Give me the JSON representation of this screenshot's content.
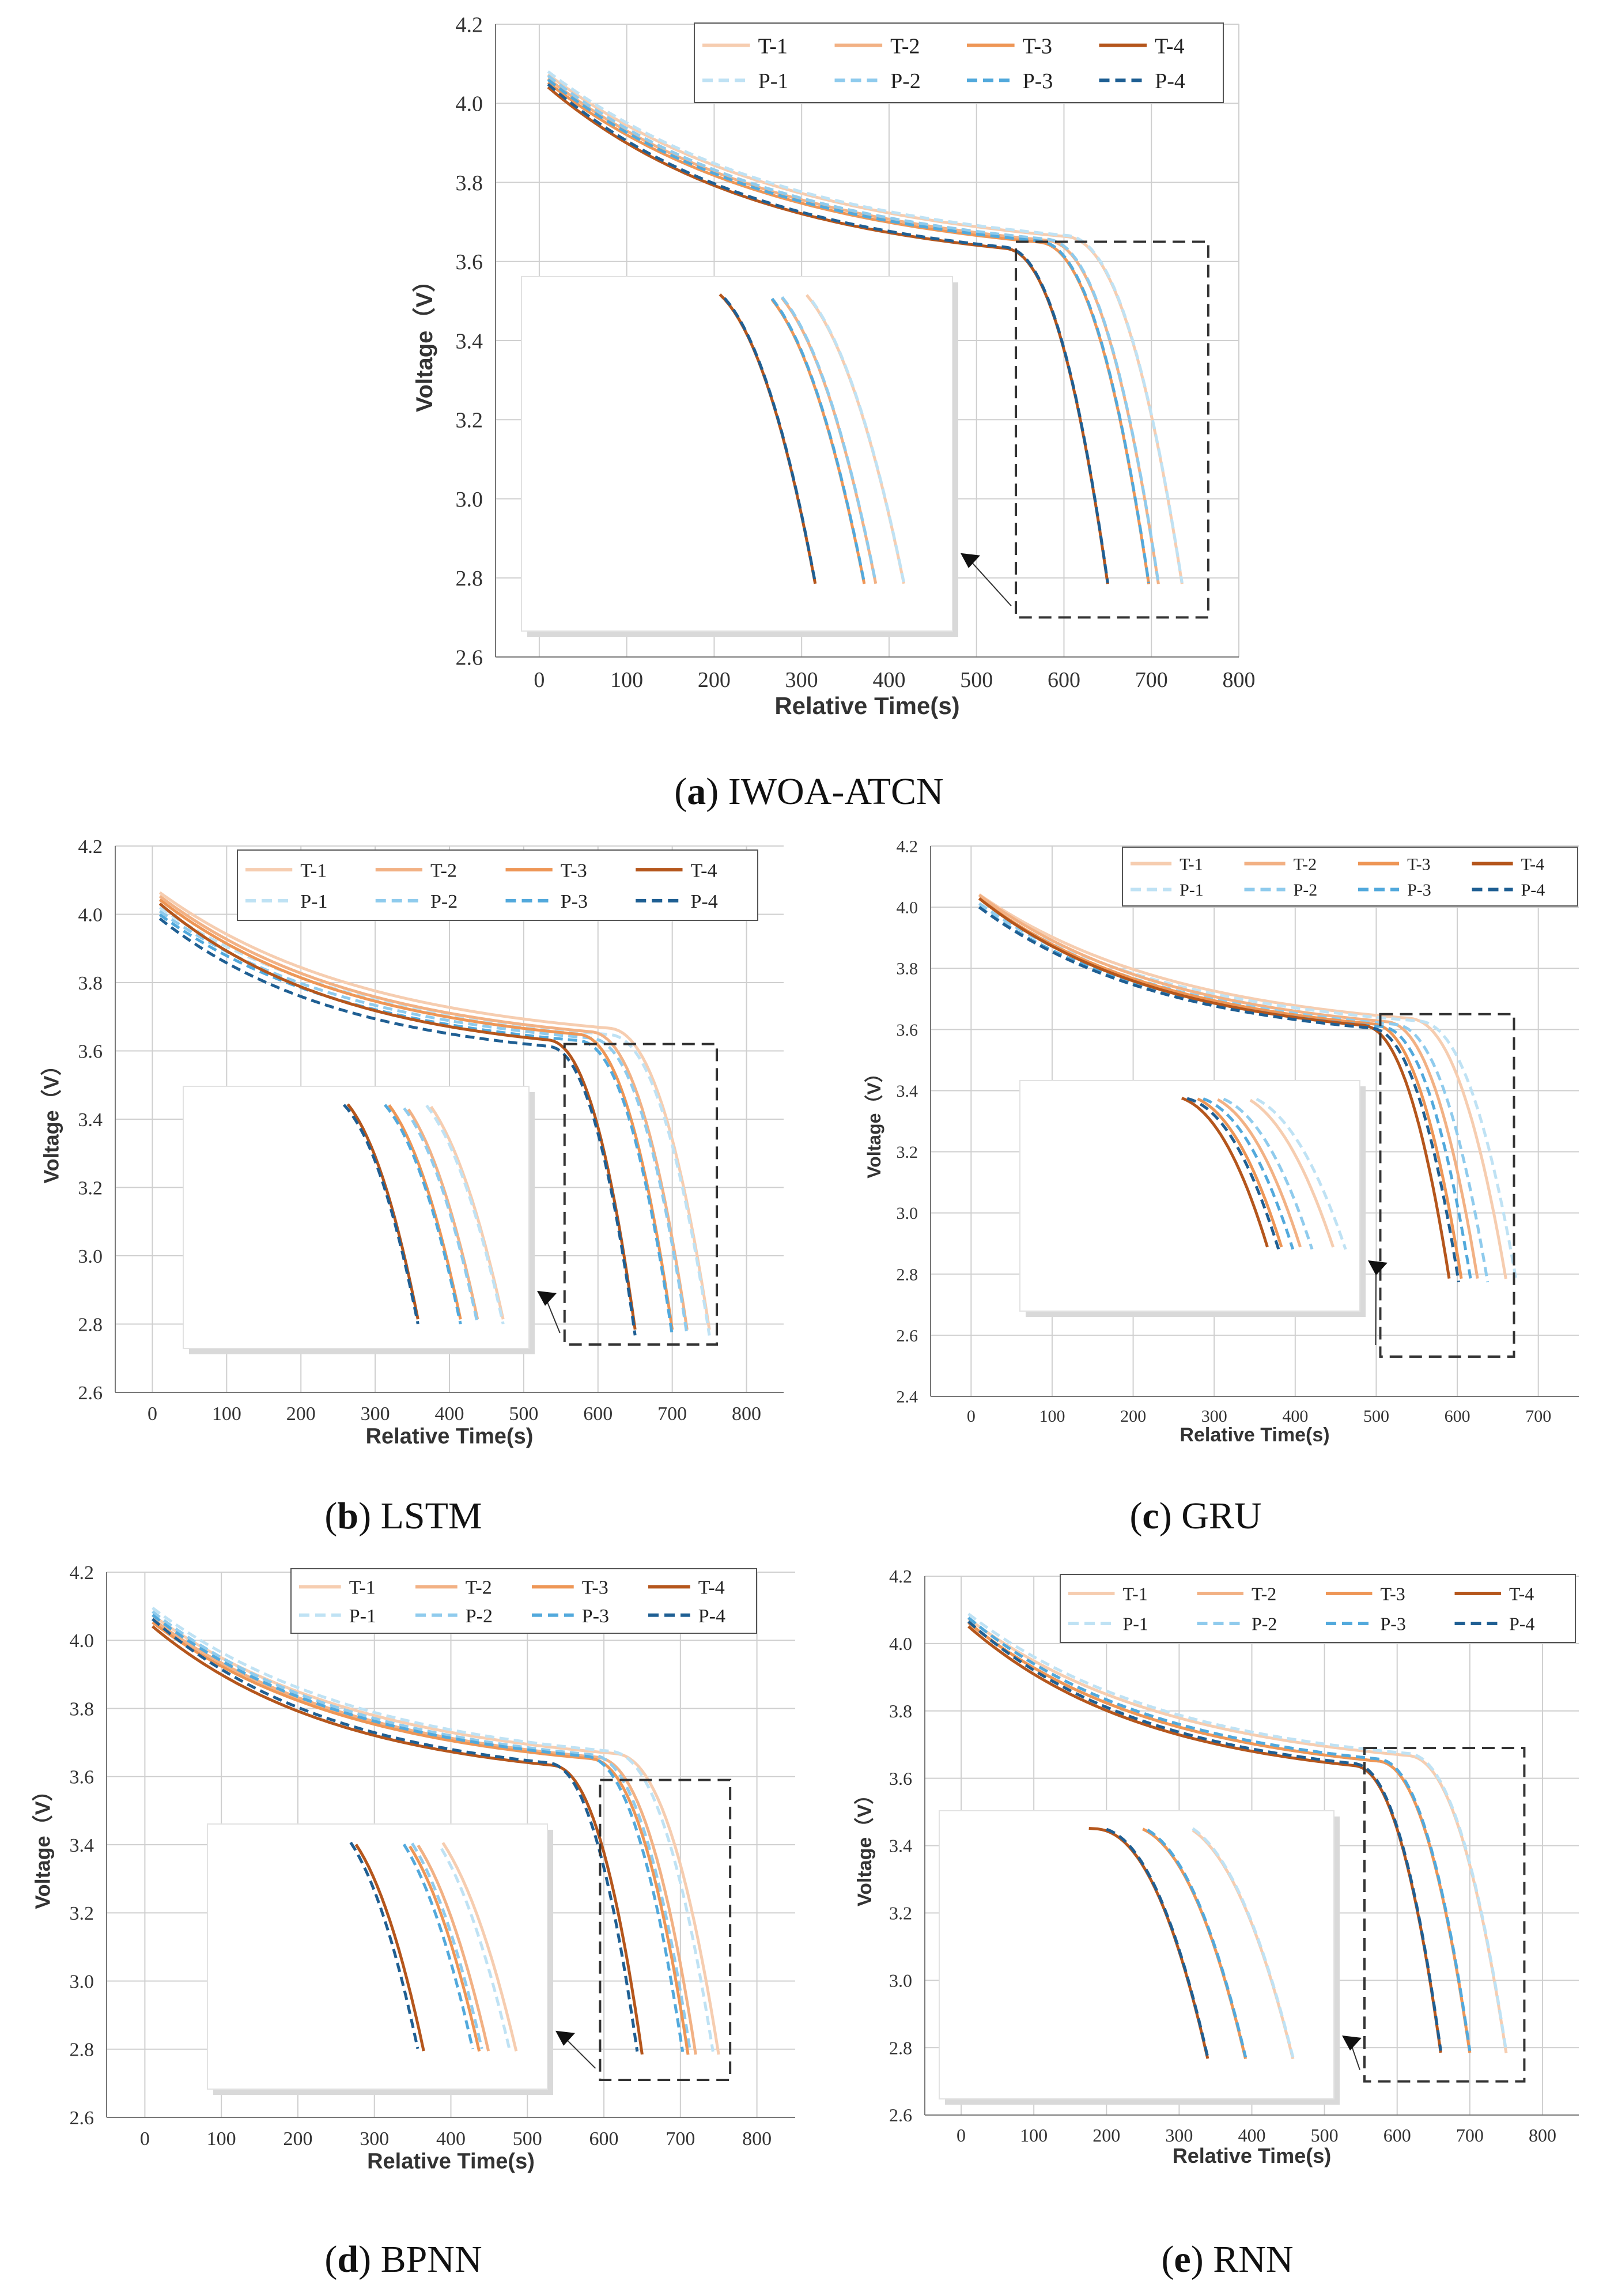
{
  "figure": {
    "legend_labels": [
      "T-1",
      "T-2",
      "T-3",
      "T-4",
      "P-1",
      "P-2",
      "P-3",
      "P-4"
    ],
    "colors": {
      "T-1": "#f6cdb0",
      "T-2": "#f2b184",
      "T-3": "#ee9656",
      "T-4": "#b5561c",
      "P-1": "#bfe2f4",
      "P-2": "#8fcbed",
      "P-3": "#52a9dc",
      "P-4": "#1f5f93"
    }
  },
  "chart_data": [
    {
      "id": "a",
      "type": "line",
      "caption_letter": "a",
      "caption_text": " IWOA-ATCN",
      "xlabel": "Relative Time(s)",
      "ylabel": "Voltage（V）",
      "xlim": [
        -50,
        800
      ],
      "ylim": [
        2.6,
        4.2
      ],
      "xticks": [
        "0",
        "100",
        "200",
        "300",
        "400",
        "500",
        "600",
        "700",
        "800"
      ],
      "yticks": [
        "2.6",
        "2.8",
        "3.0",
        "3.2",
        "3.4",
        "3.6",
        "3.8",
        "4.0",
        "4.2"
      ],
      "end_times": {
        "1": 735,
        "2": 708,
        "3": 697,
        "4": 650
      },
      "start_voltages": {
        "1": 4.09,
        "2": 4.08,
        "3": 4.07,
        "4": 4.06
      },
      "pred_offset_v": 0.005,
      "pred_time_scale": 1.0,
      "cutoff": 2.75,
      "zoom_box_x": [
        545,
        765
      ],
      "zoom_box_y": [
        2.7,
        3.65
      ]
    },
    {
      "id": "b",
      "type": "line",
      "caption_letter": "b",
      "caption_text": " LSTM",
      "xlabel": "Relative Time(s)",
      "ylabel": "Voltage（V）",
      "xlim": [
        -50,
        850
      ],
      "ylim": [
        2.6,
        4.2
      ],
      "xticks": [
        "0",
        "100",
        "200",
        "300",
        "400",
        "500",
        "600",
        "700",
        "800"
      ],
      "yticks": [
        "2.6",
        "2.8",
        "3.0",
        "3.2",
        "3.4",
        "3.6",
        "3.8",
        "4.0",
        "4.2"
      ],
      "end_times": {
        "1": 750,
        "2": 720,
        "3": 700,
        "4": 650
      },
      "start_voltages": {
        "1": 4.08,
        "2": 4.07,
        "3": 4.06,
        "4": 4.05
      },
      "pred_offset_v": -0.03,
      "pred_time_scale": 1.0,
      "cutoff": 2.75,
      "zoom_box_x": [
        555,
        760
      ],
      "zoom_box_y": [
        2.74,
        3.62
      ]
    },
    {
      "id": "c",
      "type": "line",
      "caption_letter": "c",
      "caption_text": " GRU",
      "xlabel": "Relative Time(s)",
      "ylabel": "Voltage（V）",
      "xlim": [
        -50,
        750
      ],
      "ylim": [
        2.4,
        4.2
      ],
      "xticks": [
        "0",
        "100",
        "200",
        "300",
        "400",
        "500",
        "600",
        "700"
      ],
      "yticks": [
        "2.4",
        "2.6",
        "2.8",
        "3.0",
        "3.2",
        "3.4",
        "3.6",
        "3.8",
        "4.0",
        "4.2"
      ],
      "end_times": {
        "1": 660,
        "2": 625,
        "3": 605,
        "4": 590
      },
      "start_voltages": {
        "1": 4.06,
        "2": 4.06,
        "3": 4.05,
        "4": 4.05
      },
      "pred_offset_v": -0.02,
      "pred_time_scale": 1.02,
      "cutoff": 2.75,
      "zoom_box_x": [
        505,
        670
      ],
      "zoom_box_y": [
        2.53,
        3.65
      ]
    },
    {
      "id": "d",
      "type": "line",
      "caption_letter": "d",
      "caption_text": " BPNN",
      "xlabel": "Relative Time(s)",
      "ylabel": "Voltage（V）",
      "xlim": [
        -50,
        850
      ],
      "ylim": [
        2.6,
        4.2
      ],
      "xticks": [
        "0",
        "100",
        "200",
        "300",
        "400",
        "500",
        "600",
        "700",
        "800"
      ],
      "yticks": [
        "2.6",
        "2.8",
        "3.0",
        "3.2",
        "3.4",
        "3.6",
        "3.8",
        "4.0",
        "4.2"
      ],
      "end_times": {
        "1": 750,
        "2": 720,
        "3": 710,
        "4": 650
      },
      "start_voltages": {
        "1": 4.09,
        "2": 4.08,
        "3": 4.07,
        "4": 4.06
      },
      "pred_offset_v": 0.015,
      "pred_time_scale": 0.99,
      "cutoff": 2.75,
      "zoom_box_x": [
        595,
        765
      ],
      "zoom_box_y": [
        2.71,
        3.59
      ]
    },
    {
      "id": "e",
      "type": "line",
      "caption_letter": "e",
      "caption_text": " RNN",
      "xlabel": "Relative Time(s)",
      "ylabel": "Voltage（V）",
      "xlim": [
        -50,
        850
      ],
      "ylim": [
        2.6,
        4.2
      ],
      "xticks": [
        "0",
        "100",
        "200",
        "300",
        "400",
        "500",
        "600",
        "700",
        "800"
      ],
      "yticks": [
        "2.6",
        "2.8",
        "3.0",
        "3.2",
        "3.4",
        "3.6",
        "3.8",
        "4.0",
        "4.2"
      ],
      "end_times": {
        "1": 750,
        "2": 700,
        "3": 700,
        "4": 660
      },
      "start_voltages": {
        "1": 4.09,
        "2": 4.08,
        "3": 4.08,
        "4": 4.07
      },
      "pred_offset_v": 0.01,
      "pred_time_scale": 1.0,
      "cutoff": 2.75,
      "zoom_box_x": [
        555,
        775
      ],
      "zoom_box_y": [
        2.7,
        3.69
      ]
    }
  ]
}
